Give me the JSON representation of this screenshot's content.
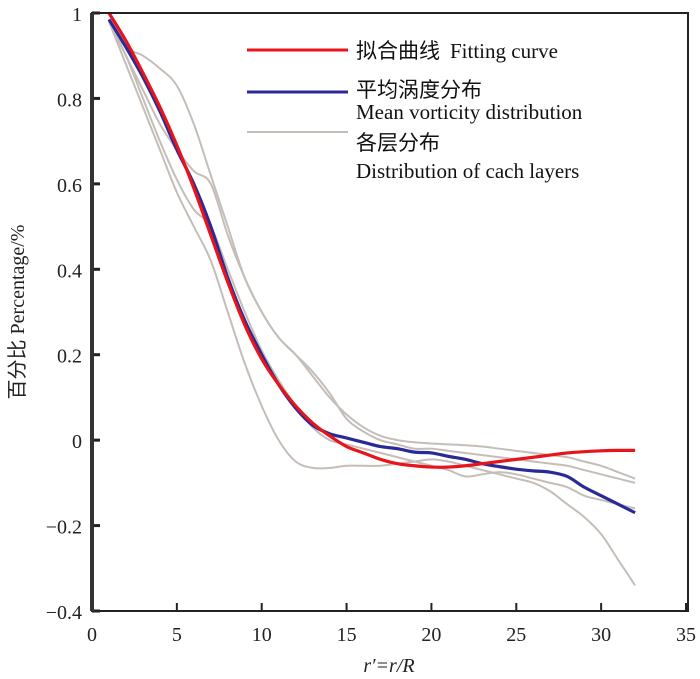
{
  "chart_data": {
    "type": "line",
    "title": "",
    "xlabel": "r′=r/R",
    "ylabel": "百分比  Percentage/%",
    "xlim": [
      0,
      35
    ],
    "ylim": [
      -0.4,
      1
    ],
    "xticks": [
      0,
      5,
      10,
      15,
      20,
      25,
      30,
      35
    ],
    "xtick_labels": [
      "0",
      "5",
      "10",
      "15",
      "20",
      "25",
      "30",
      "35"
    ],
    "yticks": [
      -0.4,
      -0.2,
      0,
      0.2,
      0.4,
      0.6,
      0.8,
      1
    ],
    "ytick_labels": [
      "−0.4",
      "−0.2",
      "0",
      "0.2",
      "0.4",
      "0.6",
      "0.8",
      "1"
    ],
    "grid": false,
    "legend_position": "top-right",
    "legend": [
      {
        "label_zh": "拟合曲线",
        "label_en": "Fitting curve",
        "color": "#e8141c"
      },
      {
        "label_zh": "平均涡度分布",
        "label_en": "Mean vorticity distribution",
        "color": "#2a2a96"
      },
      {
        "label_zh": "各层分布",
        "label_en": "Distribution of cach layers",
        "color": "#c4bdb8"
      }
    ],
    "series": [
      {
        "name": "Distribution of cach layers (1)",
        "color": "#c4bdb8",
        "x": [
          1,
          2,
          3,
          4,
          5,
          6,
          7,
          8,
          9,
          10,
          11,
          12,
          13,
          14,
          15,
          16,
          17,
          18,
          19,
          20,
          21,
          22,
          23,
          24,
          25,
          26,
          27,
          28,
          29,
          30,
          31,
          32
        ],
        "y": [
          0.98,
          0.92,
          0.9,
          0.87,
          0.83,
          0.74,
          0.62,
          0.5,
          0.38,
          0.3,
          0.24,
          0.2,
          0.15,
          0.1,
          0.06,
          0.03,
          0.01,
          0.0,
          -0.005,
          -0.008,
          -0.01,
          -0.012,
          -0.015,
          -0.02,
          -0.025,
          -0.03,
          -0.035,
          -0.04,
          -0.05,
          -0.06,
          -0.075,
          -0.09
        ]
      },
      {
        "name": "Distribution of cach layers (2)",
        "color": "#c4bdb8",
        "x": [
          1,
          2,
          3,
          4,
          5,
          6,
          7,
          8,
          9,
          10,
          11,
          12,
          13,
          14,
          15,
          16,
          17,
          18,
          19,
          20,
          21,
          22,
          23,
          24,
          25,
          26,
          27,
          28,
          29,
          30,
          31,
          32
        ],
        "y": [
          0.98,
          0.9,
          0.82,
          0.74,
          0.68,
          0.63,
          0.6,
          0.48,
          0.38,
          0.3,
          0.24,
          0.2,
          0.16,
          0.11,
          0.05,
          0.02,
          0.0,
          -0.01,
          -0.02,
          -0.02,
          -0.025,
          -0.03,
          -0.035,
          -0.04,
          -0.045,
          -0.05,
          -0.055,
          -0.06,
          -0.07,
          -0.08,
          -0.09,
          -0.1
        ]
      },
      {
        "name": "Distribution of cach layers (3)",
        "color": "#c4bdb8",
        "x": [
          1,
          2,
          3,
          4,
          5,
          6,
          7,
          8,
          9,
          10,
          11,
          12,
          13,
          14,
          15,
          16,
          17,
          18,
          19,
          20,
          21,
          22,
          23,
          24,
          25,
          26,
          27,
          28,
          29,
          30,
          31,
          32
        ],
        "y": [
          0.98,
          0.9,
          0.8,
          0.7,
          0.61,
          0.54,
          0.5,
          0.4,
          0.3,
          0.21,
          0.14,
          0.08,
          0.03,
          0.0,
          -0.01,
          -0.02,
          -0.03,
          -0.04,
          -0.05,
          -0.06,
          -0.07,
          -0.085,
          -0.08,
          -0.075,
          -0.08,
          -0.09,
          -0.1,
          -0.11,
          -0.13,
          -0.14,
          -0.15,
          -0.16
        ]
      },
      {
        "name": "Distribution of cach layers (4)",
        "color": "#c4bdb8",
        "x": [
          1,
          2,
          3,
          4,
          5,
          6,
          7,
          8,
          9,
          10,
          11,
          12,
          13,
          14,
          15,
          16,
          17,
          18,
          19,
          20,
          21,
          22,
          23,
          24,
          25,
          26,
          27,
          28,
          29,
          30,
          31,
          32
        ],
        "y": [
          0.98,
          0.88,
          0.78,
          0.68,
          0.58,
          0.5,
          0.42,
          0.3,
          0.18,
          0.08,
          0.0,
          -0.05,
          -0.065,
          -0.065,
          -0.06,
          -0.06,
          -0.06,
          -0.055,
          -0.05,
          -0.045,
          -0.05,
          -0.06,
          -0.07,
          -0.08,
          -0.09,
          -0.1,
          -0.12,
          -0.15,
          -0.18,
          -0.22,
          -0.28,
          -0.34
        ]
      },
      {
        "name": "Mean vorticity distribution",
        "color": "#2a2a96",
        "x": [
          1,
          2,
          3,
          4,
          5,
          6,
          7,
          8,
          9,
          10,
          11,
          12,
          13,
          14,
          15,
          16,
          17,
          18,
          19,
          20,
          21,
          22,
          23,
          24,
          25,
          26,
          27,
          28,
          29,
          30,
          31,
          32
        ],
        "y": [
          0.985,
          0.92,
          0.85,
          0.77,
          0.68,
          0.6,
          0.5,
          0.38,
          0.28,
          0.2,
          0.13,
          0.075,
          0.035,
          0.015,
          0.005,
          -0.005,
          -0.015,
          -0.02,
          -0.028,
          -0.03,
          -0.038,
          -0.045,
          -0.055,
          -0.062,
          -0.068,
          -0.072,
          -0.075,
          -0.085,
          -0.11,
          -0.13,
          -0.15,
          -0.17
        ]
      },
      {
        "name": "Fitting curve",
        "color": "#e8141c",
        "x": [
          1,
          2,
          3,
          4,
          5,
          6,
          7,
          8,
          9,
          10,
          11,
          12,
          13,
          14,
          15,
          16,
          17,
          18,
          19,
          20,
          21,
          22,
          23,
          24,
          25,
          26,
          27,
          28,
          29,
          30,
          31,
          32
        ],
        "y": [
          1.0,
          0.935,
          0.86,
          0.78,
          0.69,
          0.59,
          0.48,
          0.37,
          0.27,
          0.19,
          0.13,
          0.08,
          0.04,
          0.01,
          -0.015,
          -0.03,
          -0.045,
          -0.055,
          -0.06,
          -0.063,
          -0.063,
          -0.06,
          -0.055,
          -0.05,
          -0.045,
          -0.04,
          -0.035,
          -0.03,
          -0.027,
          -0.025,
          -0.024,
          -0.024
        ]
      }
    ]
  }
}
